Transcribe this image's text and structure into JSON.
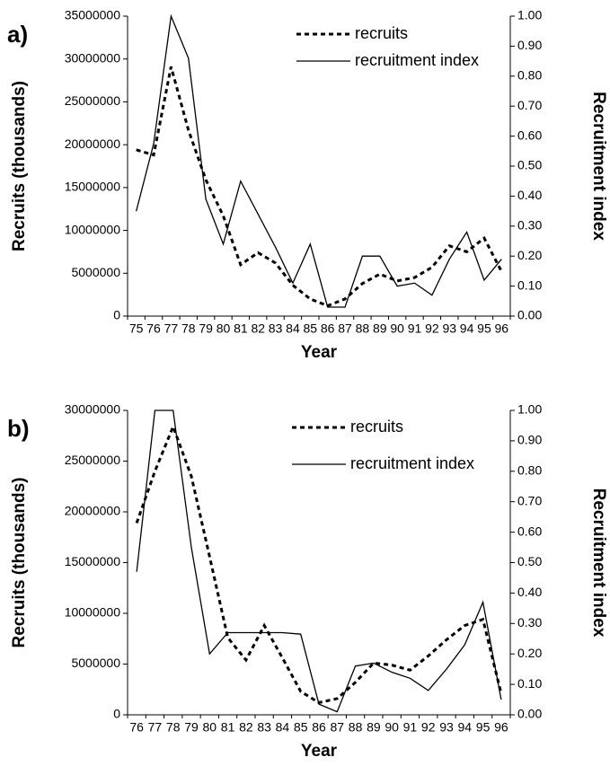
{
  "chart_data": [
    {
      "type": "line",
      "panel_label": "a)",
      "x_label": "Year",
      "y_label": "Recruits (thousands)",
      "y2_label": "Recruitment index",
      "categories": [
        "75",
        "76",
        "77",
        "78",
        "79",
        "80",
        "81",
        "82",
        "83",
        "84",
        "85",
        "86",
        "87",
        "88",
        "89",
        "90",
        "91",
        "92",
        "93",
        "94",
        "95",
        "96"
      ],
      "series": [
        {
          "name": "recruits",
          "color": "#000000",
          "dashed": true,
          "values": [
            19400000,
            18800000,
            29100000,
            21700000,
            15900000,
            11700000,
            6000000,
            7400000,
            6200000,
            3600000,
            2000000,
            1200000,
            2000000,
            3800000,
            4900000,
            4100000,
            4500000,
            5700000,
            8200000,
            7500000,
            9100000,
            5200000
          ]
        },
        {
          "name": "recruitment index",
          "color": "#000000",
          "dashed": false,
          "axis": "y2",
          "values": [
            0.35,
            0.575,
            1.0,
            0.86,
            0.39,
            0.24,
            0.45,
            0.34,
            0.23,
            0.11,
            0.24,
            0.03,
            0.03,
            0.2,
            0.2,
            0.1,
            0.11,
            0.07,
            0.19,
            0.28,
            0.12,
            0.19
          ]
        }
      ],
      "ylim": [
        0,
        35000000
      ],
      "yticks": [
        0,
        5000000,
        10000000,
        15000000,
        20000000,
        25000000,
        30000000,
        35000000
      ],
      "y2lim": [
        0,
        1
      ],
      "y2ticks": [
        {
          "value": 0,
          "label": "0.00"
        },
        {
          "value": 0.1,
          "label": "0.10"
        },
        {
          "value": 0.2,
          "label": "0.20"
        },
        {
          "value": 0.3,
          "label": "0.30"
        },
        {
          "value": 0.4,
          "label": "0.40"
        },
        {
          "value": 0.5,
          "label": "0.50"
        },
        {
          "value": 0.6,
          "label": "0.60"
        },
        {
          "value": 0.7,
          "label": "0.70"
        },
        {
          "value": 0.8,
          "label": "0.80"
        },
        {
          "value": 0.9,
          "label": "0.90"
        },
        {
          "value": 1,
          "label": "1.00"
        }
      ],
      "grid": false
    },
    {
      "type": "line",
      "panel_label": "b)",
      "x_label": "Year",
      "y_label": "Recruits (thousands)",
      "y2_label": "Recruitment index",
      "categories": [
        "76",
        "77",
        "78",
        "79",
        "80",
        "81",
        "82",
        "83",
        "84",
        "85",
        "86",
        "87",
        "88",
        "89",
        "90",
        "91",
        "92",
        "93",
        "94",
        "95",
        "96"
      ],
      "series": [
        {
          "name": "recruits",
          "color": "#000000",
          "dashed": true,
          "values": [
            18900000,
            24000000,
            28400000,
            23500000,
            15600000,
            7600000,
            5400000,
            8800000,
            5600000,
            2300000,
            1200000,
            1600000,
            3200000,
            5100000,
            4900000,
            4400000,
            5800000,
            7400000,
            8800000,
            9400000,
            2100000
          ]
        },
        {
          "name": "recruitment index",
          "color": "#000000",
          "dashed": false,
          "axis": "y2",
          "values": [
            0.47,
            1.0,
            1.0,
            0.55,
            0.2,
            0.27,
            0.27,
            0.27,
            0.27,
            0.265,
            0.035,
            0.01,
            0.16,
            0.17,
            0.14,
            0.12,
            0.08,
            0.15,
            0.23,
            0.37,
            0.05
          ]
        }
      ],
      "ylim": [
        0,
        30000000
      ],
      "yticks": [
        0,
        5000000,
        10000000,
        15000000,
        20000000,
        25000000,
        30000000
      ],
      "y2lim": [
        0,
        1
      ],
      "y2ticks": [
        {
          "value": 0,
          "label": "0.00"
        },
        {
          "value": 0.1,
          "label": "0.10"
        },
        {
          "value": 0.2,
          "label": "0.20"
        },
        {
          "value": 0.3,
          "label": "0.30"
        },
        {
          "value": 0.4,
          "label": "0.40"
        },
        {
          "value": 0.5,
          "label": "0.50"
        },
        {
          "value": 0.6,
          "label": "0.60"
        },
        {
          "value": 0.7,
          "label": "0.70"
        },
        {
          "value": 0.8,
          "label": "0.80"
        },
        {
          "value": 0.9,
          "label": "0.90"
        },
        {
          "value": 1,
          "label": "1.00"
        }
      ],
      "grid": false
    }
  ]
}
